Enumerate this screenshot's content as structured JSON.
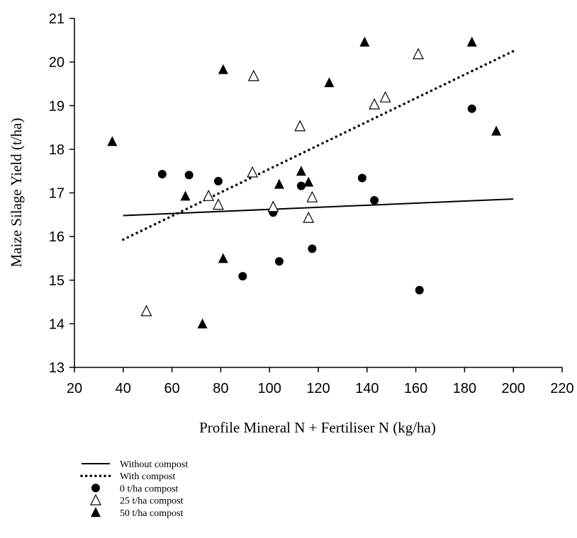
{
  "chart_data": {
    "type": "scatter",
    "xlabel": "Profile Mineral N + Fertiliser N (kg/ha)",
    "ylabel": "Maize Silage Yield (t/ha)",
    "xlim": [
      20,
      220
    ],
    "ylim": [
      13,
      21
    ],
    "xticks": [
      "20",
      "40",
      "60",
      "80",
      "100",
      "120",
      "140",
      "160",
      "180",
      "200",
      "220"
    ],
    "yticks": [
      "13",
      "14",
      "15",
      "16",
      "17",
      "18",
      "19",
      "20",
      "21"
    ],
    "grid": false,
    "legend_position": "bottom-left",
    "series": [
      {
        "name": "0 t/ha compost",
        "marker": "circle-filled",
        "points": [
          [
            56,
            17.43
          ],
          [
            67,
            17.41
          ],
          [
            79,
            17.27
          ],
          [
            89,
            15.09
          ],
          [
            101.5,
            16.55
          ],
          [
            104,
            15.43
          ],
          [
            113,
            17.16
          ],
          [
            117.5,
            15.72
          ],
          [
            138,
            17.34
          ],
          [
            143,
            16.83
          ],
          [
            161.5,
            14.77
          ],
          [
            183,
            18.93
          ]
        ]
      },
      {
        "name": "25 t/ha compost",
        "marker": "triangle-open",
        "points": [
          [
            49.5,
            14.29
          ],
          [
            75,
            16.93
          ],
          [
            79,
            16.73
          ],
          [
            93,
            17.47
          ],
          [
            93.5,
            19.68
          ],
          [
            101.5,
            16.68
          ],
          [
            112.5,
            18.53
          ],
          [
            116,
            16.43
          ],
          [
            117.5,
            16.9
          ],
          [
            143,
            19.03
          ],
          [
            147.5,
            19.19
          ],
          [
            161,
            20.18
          ]
        ]
      },
      {
        "name": "50 t/ha compost",
        "marker": "triangle-filled",
        "points": [
          [
            35.5,
            18.18
          ],
          [
            65.5,
            16.93
          ],
          [
            72.5,
            14.0
          ],
          [
            81,
            19.83
          ],
          [
            81,
            15.5
          ],
          [
            104,
            17.2
          ],
          [
            113,
            17.5
          ],
          [
            116,
            17.25
          ],
          [
            124.5,
            19.53
          ],
          [
            139,
            20.46
          ],
          [
            183,
            20.46
          ],
          [
            193,
            18.42
          ]
        ]
      },
      {
        "name": "Without compost",
        "style": "solid-line",
        "points": [
          [
            40,
            16.48
          ],
          [
            200,
            16.86
          ]
        ]
      },
      {
        "name": "With compost",
        "style": "dotted-line",
        "points": [
          [
            40,
            15.93
          ],
          [
            200,
            20.25
          ]
        ]
      }
    ]
  },
  "legend": [
    {
      "label": "Without compost",
      "symbol": "solid-line"
    },
    {
      "label": "With compost",
      "symbol": "dotted-line"
    },
    {
      "label": "0 t/ha compost",
      "symbol": "circle-filled"
    },
    {
      "label": "25 t/ha compost",
      "symbol": "triangle-open"
    },
    {
      "label": "50 t/ha compost",
      "symbol": "triangle-filled"
    }
  ]
}
